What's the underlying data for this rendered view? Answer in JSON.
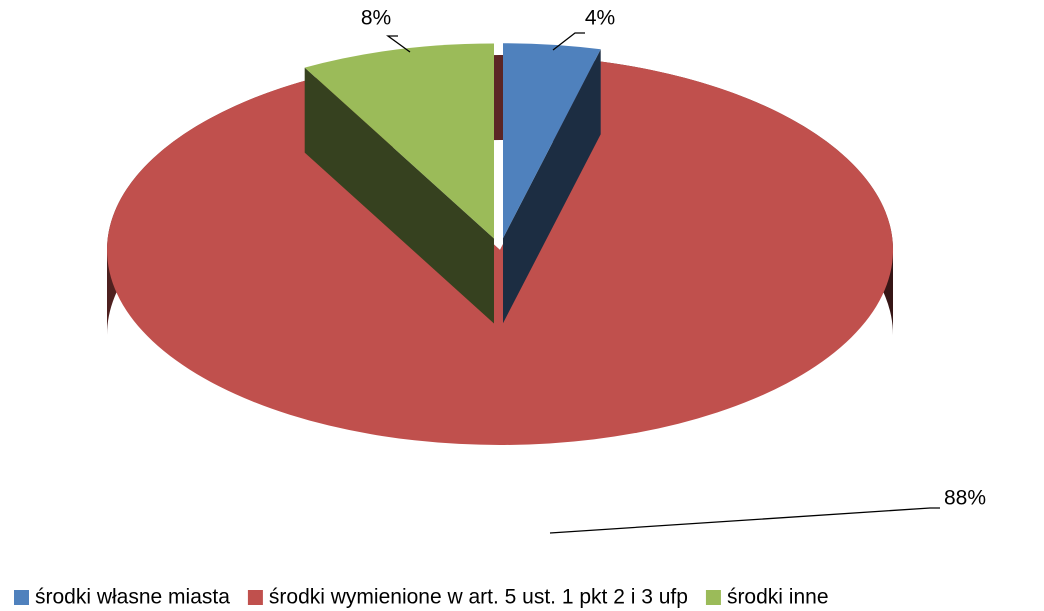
{
  "chart_data": {
    "type": "pie",
    "categories": [
      "środki własne miasta",
      "środki wymienione w art. 5 ust. 1 pkt 2 i 3 ufp",
      "środki inne"
    ],
    "values": [
      4,
      88,
      8
    ],
    "value_labels": [
      "4%",
      "88%",
      "8%"
    ],
    "colors": [
      "#4f81bd",
      "#c0504d",
      "#9bbb59"
    ],
    "legend": "bottom"
  }
}
